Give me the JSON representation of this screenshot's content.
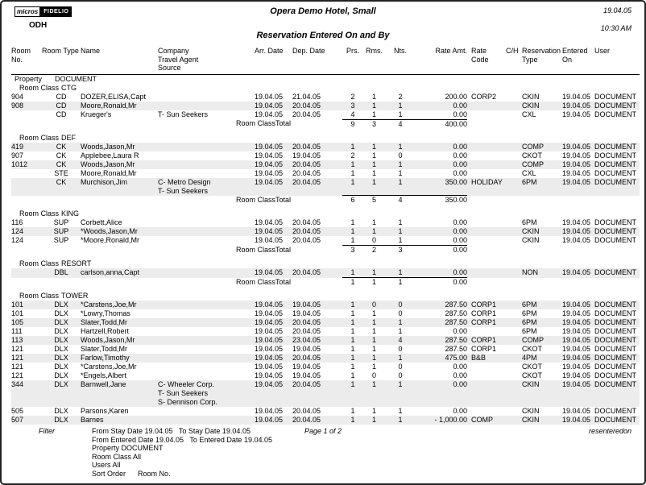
{
  "header": {
    "logo_micros": "micros",
    "logo_fidelio": "FIDELIO",
    "property_code": "ODH",
    "hotel_title": "Opera Demo Hotel, Small",
    "date": "19.04.05",
    "time": "10:30 AM",
    "report_title": "Reservation Entered On and By"
  },
  "colors": {
    "row_stripe": "#ececec",
    "text": "#000000",
    "page_border": "#222222"
  },
  "columns": [
    {
      "key": "room_no",
      "label": "Room No."
    },
    {
      "key": "room_type",
      "label": "Room Type"
    },
    {
      "key": "name",
      "label": "Name"
    },
    {
      "key": "company",
      "label": "Company\nTravel Agent\nSource"
    },
    {
      "key": "arr",
      "label": "Arr. Date"
    },
    {
      "key": "dep",
      "label": "Dep. Date"
    },
    {
      "key": "prs",
      "label": "Prs."
    },
    {
      "key": "rms",
      "label": "Rms."
    },
    {
      "key": "nts",
      "label": "Nts."
    },
    {
      "key": "rate_amt",
      "label": "Rate Amt."
    },
    {
      "key": "rate_code",
      "label": "Rate Code"
    },
    {
      "key": "ch",
      "label": "C/H"
    },
    {
      "key": "res_type",
      "label": "Reservation\nType"
    },
    {
      "key": "entered_on",
      "label": "Entered\nOn"
    },
    {
      "key": "user",
      "label": "User"
    }
  ],
  "report": {
    "property_label": "Property",
    "property_value": "DOCUMENT",
    "room_class_label": "Room Class",
    "total_label": "Room ClassTotal",
    "sections": [
      {
        "room_class": "CTG",
        "rows": [
          {
            "room_no": "904",
            "room_type": "CD",
            "name": "DOZER,ELISA,Capt",
            "company_lines": [],
            "arr": "19.04.05",
            "dep": "21.04.05",
            "prs": "2",
            "rms": "1",
            "nts": "2",
            "rate_amt": "200.00",
            "rate_code": "CORP2",
            "ch": "",
            "res_type": "CKIN",
            "entered_on": "19.04.05",
            "user": "DOCUMENT",
            "shaded": false
          },
          {
            "room_no": "908",
            "room_type": "CD",
            "name": "Moore,Ronald,Mr",
            "company_lines": [],
            "arr": "19.04.05",
            "dep": "20.04.05",
            "prs": "3",
            "rms": "1",
            "nts": "1",
            "rate_amt": "0.00",
            "rate_code": "",
            "ch": "",
            "res_type": "CKIN",
            "entered_on": "19.04.05",
            "user": "DOCUMENT",
            "shaded": true
          },
          {
            "room_no": "",
            "room_type": "CD",
            "name": "Krueger's",
            "company_lines": [
              "T- Sun Seekers"
            ],
            "arr": "19.04.05",
            "dep": "20.04.05",
            "prs": "4",
            "rms": "1",
            "nts": "1",
            "rate_amt": "0.00",
            "rate_code": "",
            "ch": "",
            "res_type": "CXL",
            "entered_on": "19.04.05",
            "user": "DOCUMENT",
            "shaded": false
          }
        ],
        "totals": {
          "prs": "9",
          "rms": "3",
          "nts": "4",
          "rate_amt": "400.00"
        }
      },
      {
        "room_class": "DEF",
        "rows": [
          {
            "room_no": "419",
            "room_type": "CK",
            "name": "Woods,Jason,Mr",
            "company_lines": [],
            "arr": "19.04.05",
            "dep": "20.04.05",
            "prs": "1",
            "rms": "1",
            "nts": "1",
            "rate_amt": "0.00",
            "rate_code": "",
            "ch": "",
            "res_type": "COMP",
            "entered_on": "19.04.05",
            "user": "DOCUMENT",
            "shaded": true
          },
          {
            "room_no": "907",
            "room_type": "CK",
            "name": "Applebee,Laura R",
            "company_lines": [],
            "arr": "19.04.05",
            "dep": "19.04.05",
            "prs": "2",
            "rms": "1",
            "nts": "0",
            "rate_amt": "0.00",
            "rate_code": "",
            "ch": "",
            "res_type": "CKOT",
            "entered_on": "19.04.05",
            "user": "DOCUMENT",
            "shaded": false
          },
          {
            "room_no": "1012",
            "room_type": "CK",
            "name": "Woods,Jason,Mr",
            "company_lines": [],
            "arr": "19.04.05",
            "dep": "20.04.05",
            "prs": "1",
            "rms": "1",
            "nts": "1",
            "rate_amt": "0.00",
            "rate_code": "",
            "ch": "",
            "res_type": "COMP",
            "entered_on": "19.04.05",
            "user": "DOCUMENT",
            "shaded": true
          },
          {
            "room_no": "",
            "room_type": "STE",
            "name": "Moore,Ronald,Mr",
            "company_lines": [],
            "arr": "19.04.05",
            "dep": "20.04.05",
            "prs": "1",
            "rms": "1",
            "nts": "1",
            "rate_amt": "0.00",
            "rate_code": "",
            "ch": "",
            "res_type": "CXL",
            "entered_on": "19.04.05",
            "user": "DOCUMENT",
            "shaded": false
          },
          {
            "room_no": "",
            "room_type": "CK",
            "name": "Murchison,Jim",
            "company_lines": [
              "C- Metro Design",
              "T- Sun Seekers"
            ],
            "arr": "19.04.05",
            "dep": "20.04.05",
            "prs": "1",
            "rms": "1",
            "nts": "1",
            "rate_amt": "350.00",
            "rate_code": "HOLIDAY",
            "ch": "",
            "res_type": "6PM",
            "entered_on": "19.04.05",
            "user": "DOCUMENT",
            "shaded": true
          }
        ],
        "totals": {
          "prs": "6",
          "rms": "5",
          "nts": "4",
          "rate_amt": "350.00"
        }
      },
      {
        "room_class": "KING",
        "rows": [
          {
            "room_no": "116",
            "room_type": "SUP",
            "name": "Corbett,Alice",
            "company_lines": [],
            "arr": "19.04.05",
            "dep": "20.04.05",
            "prs": "1",
            "rms": "1",
            "nts": "1",
            "rate_amt": "0.00",
            "rate_code": "",
            "ch": "",
            "res_type": "6PM",
            "entered_on": "19.04.05",
            "user": "DOCUMENT",
            "shaded": false
          },
          {
            "room_no": "124",
            "room_type": "SUP",
            "name": "*Woods,Jason,Mr",
            "company_lines": [],
            "arr": "19.04.05",
            "dep": "20.04.05",
            "prs": "1",
            "rms": "1",
            "nts": "1",
            "rate_amt": "0.00",
            "rate_code": "",
            "ch": "",
            "res_type": "CKIN",
            "entered_on": "19.04.05",
            "user": "DOCUMENT",
            "shaded": true
          },
          {
            "room_no": "124",
            "room_type": "SUP",
            "name": "*Moore,Ronald,Mr",
            "company_lines": [],
            "arr": "19.04.05",
            "dep": "20.04.05",
            "prs": "1",
            "rms": "0",
            "nts": "1",
            "rate_amt": "0.00",
            "rate_code": "",
            "ch": "",
            "res_type": "CKIN",
            "entered_on": "19.04.05",
            "user": "DOCUMENT",
            "shaded": false
          }
        ],
        "totals": {
          "prs": "3",
          "rms": "2",
          "nts": "3",
          "rate_amt": "0.00"
        }
      },
      {
        "room_class": "RESORT",
        "rows": [
          {
            "room_no": "",
            "room_type": "DBL",
            "name": "carlson,anna,Capt",
            "company_lines": [],
            "arr": "19.04.05",
            "dep": "20.04.05",
            "prs": "1",
            "rms": "1",
            "nts": "1",
            "rate_amt": "0.00",
            "rate_code": "",
            "ch": "",
            "res_type": "NON",
            "entered_on": "19.04.05",
            "user": "DOCUMENT",
            "shaded": true
          }
        ],
        "totals": {
          "prs": "1",
          "rms": "1",
          "nts": "1",
          "rate_amt": "0.00"
        }
      },
      {
        "room_class": "TOWER",
        "rows": [
          {
            "room_no": "101",
            "room_type": "DLX",
            "name": "*Carstens,Joe,Mr",
            "company_lines": [],
            "arr": "19.04.05",
            "dep": "19.04.05",
            "prs": "1",
            "rms": "0",
            "nts": "0",
            "rate_amt": "287.50",
            "rate_code": "CORP1",
            "ch": "",
            "res_type": "6PM",
            "entered_on": "19.04.05",
            "user": "DOCUMENT",
            "shaded": true
          },
          {
            "room_no": "101",
            "room_type": "DLX",
            "name": "*Lowry,Thomas",
            "company_lines": [],
            "arr": "19.04.05",
            "dep": "19.04.05",
            "prs": "1",
            "rms": "1",
            "nts": "0",
            "rate_amt": "287.50",
            "rate_code": "CORP1",
            "ch": "",
            "res_type": "6PM",
            "entered_on": "19.04.05",
            "user": "DOCUMENT",
            "shaded": false
          },
          {
            "room_no": "105",
            "room_type": "DLX",
            "name": "Slater,Todd,Mr",
            "company_lines": [],
            "arr": "19.04.05",
            "dep": "20.04.05",
            "prs": "1",
            "rms": "1",
            "nts": "1",
            "rate_amt": "287.50",
            "rate_code": "CORP1",
            "ch": "",
            "res_type": "6PM",
            "entered_on": "19.04.05",
            "user": "DOCUMENT",
            "shaded": true
          },
          {
            "room_no": "111",
            "room_type": "DLX",
            "name": "Hartzell,Robert",
            "company_lines": [],
            "arr": "19.04.05",
            "dep": "20.04.05",
            "prs": "1",
            "rms": "1",
            "nts": "1",
            "rate_amt": "0.00",
            "rate_code": "",
            "ch": "",
            "res_type": "6PM",
            "entered_on": "19.04.05",
            "user": "DOCUMENT",
            "shaded": false
          },
          {
            "room_no": "113",
            "room_type": "DLX",
            "name": "Woods,Jason,Mr",
            "company_lines": [],
            "arr": "19.04.05",
            "dep": "23.04.05",
            "prs": "1",
            "rms": "1",
            "nts": "4",
            "rate_amt": "287.50",
            "rate_code": "CORP1",
            "ch": "",
            "res_type": "COMP",
            "entered_on": "19.04.05",
            "user": "DOCUMENT",
            "shaded": true
          },
          {
            "room_no": "121",
            "room_type": "DLX",
            "name": "Slater,Todd,Mr",
            "company_lines": [],
            "arr": "19.04.05",
            "dep": "19.04.05",
            "prs": "1",
            "rms": "1",
            "nts": "0",
            "rate_amt": "287.50",
            "rate_code": "CORP1",
            "ch": "",
            "res_type": "CKOT",
            "entered_on": "19.04.05",
            "user": "DOCUMENT",
            "shaded": false
          },
          {
            "room_no": "121",
            "room_type": "DLX",
            "name": "Farlow,Timothy",
            "company_lines": [],
            "arr": "19.04.05",
            "dep": "20.04.05",
            "prs": "1",
            "rms": "1",
            "nts": "1",
            "rate_amt": "475.00",
            "rate_code": "B&B",
            "ch": "",
            "res_type": "4PM",
            "entered_on": "19.04.05",
            "user": "DOCUMENT",
            "shaded": true
          },
          {
            "room_no": "121",
            "room_type": "DLX",
            "name": "*Carstens,Joe,Mr",
            "company_lines": [],
            "arr": "19.04.05",
            "dep": "19.04.05",
            "prs": "1",
            "rms": "1",
            "nts": "0",
            "rate_amt": "0.00",
            "rate_code": "",
            "ch": "",
            "res_type": "CKOT",
            "entered_on": "19.04.05",
            "user": "DOCUMENT",
            "shaded": false
          },
          {
            "room_no": "121",
            "room_type": "DLX",
            "name": "*Engels,Albert",
            "company_lines": [],
            "arr": "19.04.05",
            "dep": "19.04.05",
            "prs": "1",
            "rms": "0",
            "nts": "0",
            "rate_amt": "0.00",
            "rate_code": "",
            "ch": "",
            "res_type": "CKOT",
            "entered_on": "19.04.05",
            "user": "DOCUMENT",
            "shaded": false
          },
          {
            "room_no": "344",
            "room_type": "DLX",
            "name": "Barnwell,Jane",
            "company_lines": [
              "C- Wheeler Corp.",
              "T- Sun Seekers",
              "S- Dennison Corp."
            ],
            "arr": "19.04.05",
            "dep": "20.04.05",
            "prs": "1",
            "rms": "1",
            "nts": "1",
            "rate_amt": "0.00",
            "rate_code": "",
            "ch": "",
            "res_type": "CKIN",
            "entered_on": "19.04.05",
            "user": "DOCUMENT",
            "shaded": true
          },
          {
            "room_no": "505",
            "room_type": "DLX",
            "name": "Parsons,Karen",
            "company_lines": [],
            "arr": "19.04.05",
            "dep": "20.04.05",
            "prs": "1",
            "rms": "1",
            "nts": "1",
            "rate_amt": "0.00",
            "rate_code": "",
            "ch": "",
            "res_type": "CKIN",
            "entered_on": "19.04.05",
            "user": "DOCUMENT",
            "shaded": false
          },
          {
            "room_no": "507",
            "room_type": "DLX",
            "name": "Barnes",
            "company_lines": [],
            "arr": "19.04.05",
            "dep": "20.04.05",
            "prs": "1",
            "rms": "1",
            "nts": "1",
            "rate_amt": "- 1,000.00",
            "rate_code": "COMP",
            "ch": "",
            "res_type": "CKIN",
            "entered_on": "19.04.05",
            "user": "DOCUMENT",
            "shaded": true
          }
        ],
        "totals": null
      }
    ]
  },
  "footer": {
    "filter_label": "Filter",
    "filter_lines": [
      "From Stay Date 19.04.05   To Stay Date 19.04.05",
      "From Entered Date 19.04.05   To Entered Date 19.04.05",
      "Property DOCUMENT",
      "Room Class All",
      "Users All",
      "Sort Order      Room No."
    ],
    "page_label": "Page 1 of 2",
    "report_name": "resenteredon"
  }
}
